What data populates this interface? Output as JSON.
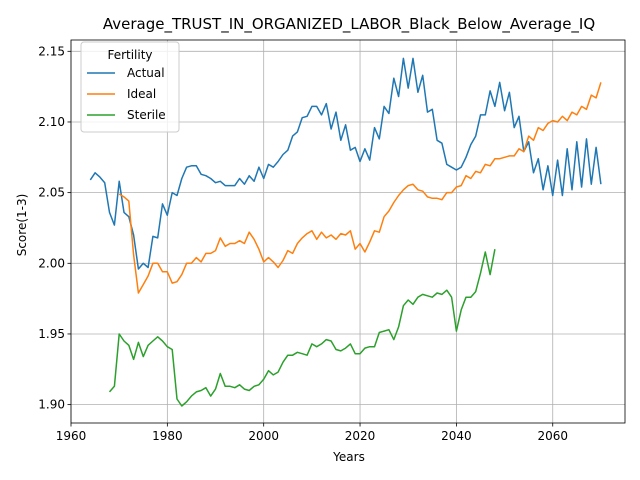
{
  "chart_data": {
    "type": "line",
    "title": "Average_TRUST_IN_ORGANIZED_LABOR_Black_Below_Average_IQ",
    "xlabel": "Years",
    "ylabel": "Score(1-3)",
    "xlim": [
      1960,
      2075
    ],
    "ylim": [
      1.887,
      2.158
    ],
    "xticks": [
      1960,
      1980,
      2000,
      2020,
      2040,
      2060
    ],
    "yticks": [
      1.9,
      1.95,
      2.0,
      2.05,
      2.1,
      2.15
    ],
    "xtick_labels": [
      "1960",
      "1980",
      "2000",
      "2020",
      "2040",
      "2060"
    ],
    "ytick_labels": [
      "1.90",
      "1.95",
      "2.00",
      "2.05",
      "2.10",
      "2.15"
    ],
    "grid": true,
    "legend": {
      "title": "Fertility",
      "placement": "top-left"
    },
    "series": [
      {
        "name": "Actual",
        "color": "#1f77b4",
        "x": [
          1964,
          1965,
          1966,
          1967,
          1968,
          1969,
          1970,
          1971,
          1972,
          1973,
          1974,
          1975,
          1976,
          1977,
          1978,
          1979,
          1980,
          1981,
          1982,
          1983,
          1984,
          1985,
          1986,
          1987,
          1988,
          1989,
          1990,
          1991,
          1992,
          1993,
          1994,
          1995,
          1996,
          1997,
          1998,
          1999,
          2000,
          2001,
          2002,
          2003,
          2004,
          2005,
          2006,
          2007,
          2008,
          2009,
          2010,
          2011,
          2012,
          2013,
          2014,
          2015,
          2016,
          2017,
          2018,
          2019,
          2020,
          2021,
          2022,
          2023,
          2024,
          2025,
          2026,
          2027,
          2028,
          2029,
          2030,
          2031,
          2032,
          2033,
          2034,
          2035,
          2036,
          2037,
          2038,
          2039,
          2040,
          2041,
          2042,
          2043,
          2044,
          2045,
          2046,
          2047,
          2048,
          2049,
          2050,
          2051,
          2052,
          2053,
          2054,
          2055,
          2056,
          2057,
          2058,
          2059,
          2060,
          2061,
          2062,
          2063,
          2064,
          2065,
          2066,
          2067,
          2068,
          2069,
          2070
        ],
        "values": [
          2.059,
          2.064,
          2.061,
          2.057,
          2.036,
          2.027,
          2.058,
          2.036,
          2.033,
          2.02,
          1.996,
          2.0,
          1.997,
          2.019,
          2.018,
          2.042,
          2.034,
          2.05,
          2.048,
          2.06,
          2.068,
          2.069,
          2.069,
          2.063,
          2.062,
          2.06,
          2.057,
          2.058,
          2.055,
          2.055,
          2.055,
          2.06,
          2.056,
          2.062,
          2.058,
          2.068,
          2.06,
          2.07,
          2.068,
          2.072,
          2.077,
          2.08,
          2.09,
          2.093,
          2.103,
          2.104,
          2.111,
          2.111,
          2.105,
          2.113,
          2.095,
          2.107,
          2.087,
          2.098,
          2.08,
          2.082,
          2.072,
          2.081,
          2.073,
          2.096,
          2.088,
          2.111,
          2.106,
          2.131,
          2.118,
          2.145,
          2.124,
          2.145,
          2.121,
          2.133,
          2.107,
          2.109,
          2.087,
          2.085,
          2.07,
          2.068,
          2.066,
          2.068,
          2.075,
          2.084,
          2.09,
          2.105,
          2.105,
          2.122,
          2.111,
          2.128,
          2.108,
          2.121,
          2.096,
          2.104,
          2.079,
          2.086,
          2.064,
          2.074,
          2.052,
          2.069,
          2.048,
          2.073,
          2.048,
          2.081,
          2.052,
          2.086,
          2.054,
          2.088,
          2.056,
          2.082,
          2.056
        ]
      },
      {
        "name": "Ideal",
        "color": "#ff7f0e",
        "x": [
          1970,
          1971,
          1972,
          1973,
          1974,
          1975,
          1976,
          1977,
          1978,
          1979,
          1980,
          1981,
          1982,
          1983,
          1984,
          1985,
          1986,
          1987,
          1988,
          1989,
          1990,
          1991,
          1992,
          1993,
          1994,
          1995,
          1996,
          1997,
          1998,
          1999,
          2000,
          2001,
          2002,
          2003,
          2004,
          2005,
          2006,
          2007,
          2008,
          2009,
          2010,
          2011,
          2012,
          2013,
          2014,
          2015,
          2016,
          2017,
          2018,
          2019,
          2020,
          2021,
          2022,
          2023,
          2024,
          2025,
          2026,
          2027,
          2028,
          2029,
          2030,
          2031,
          2032,
          2033,
          2034,
          2035,
          2036,
          2037,
          2038,
          2039,
          2040,
          2041,
          2042,
          2043,
          2044,
          2045,
          2046,
          2047,
          2048,
          2049,
          2050,
          2051,
          2052,
          2053,
          2054,
          2055,
          2056,
          2057,
          2058,
          2059,
          2060,
          2061,
          2062,
          2063,
          2064,
          2065,
          2066,
          2067,
          2068,
          2069,
          2070
        ],
        "values": [
          2.049,
          2.047,
          2.044,
          2.006,
          1.979,
          1.985,
          1.991,
          2.0,
          2.0,
          1.994,
          1.994,
          1.986,
          1.987,
          1.992,
          2.0,
          2.0,
          2.004,
          2.001,
          2.007,
          2.007,
          2.009,
          2.018,
          2.012,
          2.014,
          2.014,
          2.016,
          2.014,
          2.022,
          2.017,
          2.01,
          2.001,
          2.004,
          2.001,
          1.997,
          2.002,
          2.009,
          2.007,
          2.014,
          2.018,
          2.021,
          2.023,
          2.017,
          2.022,
          2.018,
          2.02,
          2.017,
          2.021,
          2.02,
          2.023,
          2.01,
          2.014,
          2.008,
          2.015,
          2.023,
          2.022,
          2.033,
          2.037,
          2.043,
          2.048,
          2.052,
          2.055,
          2.056,
          2.052,
          2.051,
          2.047,
          2.046,
          2.046,
          2.045,
          2.05,
          2.05,
          2.054,
          2.055,
          2.062,
          2.06,
          2.065,
          2.064,
          2.07,
          2.069,
          2.074,
          2.074,
          2.075,
          2.076,
          2.076,
          2.081,
          2.079,
          2.09,
          2.087,
          2.096,
          2.094,
          2.099,
          2.101,
          2.1,
          2.104,
          2.101,
          2.107,
          2.105,
          2.111,
          2.109,
          2.119,
          2.117,
          2.128
        ]
      },
      {
        "name": "Sterile",
        "color": "#2ca02c",
        "x": [
          1968,
          1969,
          1970,
          1971,
          1972,
          1973,
          1974,
          1975,
          1976,
          1977,
          1978,
          1979,
          1980,
          1981,
          1982,
          1983,
          1984,
          1985,
          1986,
          1987,
          1988,
          1989,
          1990,
          1991,
          1992,
          1993,
          1994,
          1995,
          1996,
          1997,
          1998,
          1999,
          2000,
          2001,
          2002,
          2003,
          2004,
          2005,
          2006,
          2007,
          2008,
          2009,
          2010,
          2011,
          2012,
          2013,
          2014,
          2015,
          2016,
          2017,
          2018,
          2019,
          2020,
          2021,
          2022,
          2023,
          2024,
          2025,
          2026,
          2027,
          2028,
          2029,
          2030,
          2031,
          2032,
          2033,
          2034,
          2035,
          2036,
          2037,
          2038,
          2039,
          2040,
          2041,
          2042,
          2043,
          2044,
          2045,
          2046,
          2047,
          2048
        ],
        "values": [
          1.909,
          1.913,
          1.95,
          1.945,
          1.942,
          1.932,
          1.944,
          1.934,
          1.942,
          1.945,
          1.948,
          1.945,
          1.941,
          1.939,
          1.904,
          1.899,
          1.902,
          1.906,
          1.909,
          1.91,
          1.912,
          1.906,
          1.911,
          1.922,
          1.913,
          1.913,
          1.912,
          1.914,
          1.911,
          1.91,
          1.913,
          1.914,
          1.918,
          1.924,
          1.921,
          1.923,
          1.93,
          1.935,
          1.935,
          1.937,
          1.936,
          1.935,
          1.943,
          1.941,
          1.943,
          1.946,
          1.945,
          1.939,
          1.938,
          1.94,
          1.943,
          1.936,
          1.936,
          1.94,
          1.941,
          1.941,
          1.951,
          1.952,
          1.953,
          1.946,
          1.955,
          1.97,
          1.974,
          1.971,
          1.976,
          1.978,
          1.977,
          1.976,
          1.979,
          1.978,
          1.981,
          1.976,
          1.952,
          1.967,
          1.976,
          1.976,
          1.98,
          1.993,
          2.008,
          1.992,
          2.01
        ]
      }
    ]
  }
}
